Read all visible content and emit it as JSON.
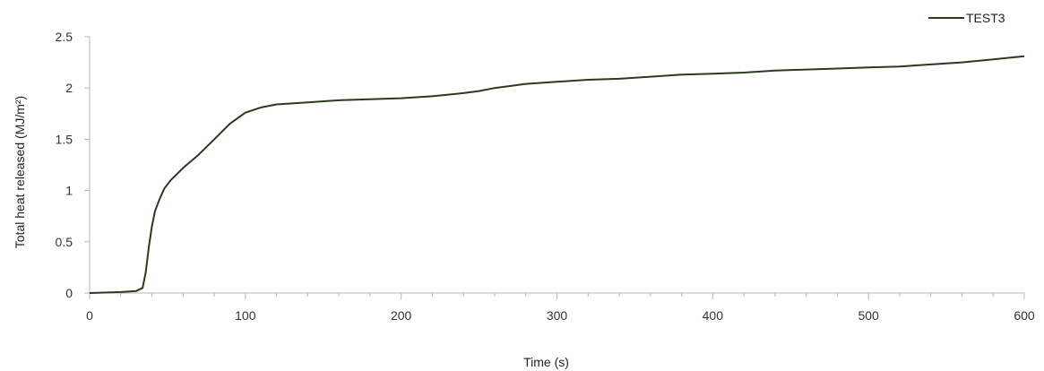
{
  "chart_data": {
    "type": "line",
    "xlabel": "Time (s)",
    "ylabel": "Total heat released (MJ/m²)",
    "xlim": [
      0,
      600
    ],
    "ylim": [
      0,
      2.5
    ],
    "x_ticks": [
      0,
      100,
      200,
      300,
      400,
      500,
      600
    ],
    "y_ticks": [
      0,
      0.5,
      1,
      1.5,
      2,
      2.5
    ],
    "x_tick_labels": [
      "0",
      "100",
      "200",
      "300",
      "400",
      "500",
      "600"
    ],
    "y_tick_labels": [
      "0",
      "0.5",
      "1",
      "1.5",
      "2",
      "2.5"
    ],
    "grid": false,
    "legend_position": "top-right",
    "series": [
      {
        "name": "TEST3",
        "color": "#2b3a1e",
        "x": [
          0,
          20,
          30,
          34,
          36,
          38,
          40,
          42,
          45,
          48,
          52,
          60,
          70,
          80,
          90,
          100,
          110,
          120,
          140,
          160,
          180,
          200,
          220,
          240,
          250,
          260,
          280,
          300,
          320,
          340,
          360,
          380,
          400,
          420,
          440,
          460,
          480,
          500,
          520,
          540,
          560,
          580,
          600
        ],
        "y": [
          0,
          0.01,
          0.02,
          0.05,
          0.2,
          0.45,
          0.65,
          0.8,
          0.92,
          1.02,
          1.1,
          1.22,
          1.35,
          1.5,
          1.65,
          1.76,
          1.81,
          1.84,
          1.86,
          1.88,
          1.89,
          1.9,
          1.92,
          1.95,
          1.97,
          2.0,
          2.04,
          2.06,
          2.08,
          2.09,
          2.11,
          2.13,
          2.14,
          2.15,
          2.17,
          2.18,
          2.19,
          2.2,
          2.21,
          2.23,
          2.25,
          2.28,
          2.31
        ]
      }
    ]
  }
}
